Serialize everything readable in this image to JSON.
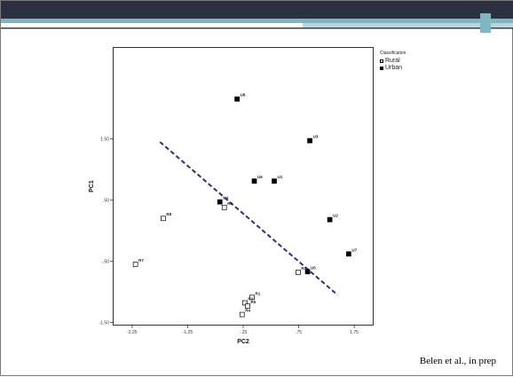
{
  "colors": {
    "header_dark": "#2b3140",
    "header_teal": "#7fb6c4",
    "header_light": "#b9d6de",
    "divider_line": "#3b3f4a",
    "rural_fill": "#ffffff",
    "urban_fill": "#000000",
    "dashed_line": "#2e2e7a"
  },
  "legend": {
    "title": "Classification",
    "items": [
      {
        "label": "Rural",
        "marker": "open-square"
      },
      {
        "label": "Urban",
        "marker": "filled-square"
      }
    ]
  },
  "citation": "Belen et al., in prep",
  "chart_data": {
    "type": "scatter",
    "xlabel": "PC2",
    "ylabel": "PC1",
    "xlim": [
      -2.6,
      2.1
    ],
    "ylim": [
      -1.55,
      3.0
    ],
    "xticks": [
      -2.25,
      -1.25,
      -0.25,
      0.75,
      1.75
    ],
    "xtick_labels": [
      "-2.25",
      "-1.25",
      "-.25",
      ".75",
      "1.75"
    ],
    "yticks": [
      1.5,
      0.5,
      -0.5,
      -1.5
    ],
    "ytick_labels": [
      "1.50",
      ".50",
      "-.50",
      "-1.50"
    ],
    "grid": false,
    "legend_position": "right",
    "series": [
      {
        "name": "Rural",
        "marker": "open-square",
        "points": [
          {
            "label": "R1",
            "x": -0.09,
            "y": -1.09
          },
          {
            "label": "R2",
            "x": 0.74,
            "y": -0.68
          },
          {
            "label": "R3",
            "x": -0.22,
            "y": -1.18
          },
          {
            "label": "R4",
            "x": -0.27,
            "y": -1.37
          },
          {
            "label": "R5",
            "x": -0.17,
            "y": -1.23
          },
          {
            "label": "R6",
            "x": -0.59,
            "y": 0.38
          },
          {
            "label": "R7",
            "x": -2.19,
            "y": -0.55
          },
          {
            "label": "R8",
            "x": -1.69,
            "y": 0.2
          }
        ]
      },
      {
        "name": "Urban",
        "marker": "filled-square",
        "points": [
          {
            "label": "U1",
            "x": 0.31,
            "y": 0.81
          },
          {
            "label": "U2",
            "x": 1.31,
            "y": 0.18
          },
          {
            "label": "U3",
            "x": 0.95,
            "y": 1.47
          },
          {
            "label": "U4",
            "x": -0.67,
            "y": 0.47
          },
          {
            "label": "U5",
            "x": 0.91,
            "y": -0.67
          },
          {
            "label": "U6",
            "x": -0.05,
            "y": 0.81
          },
          {
            "label": "U7",
            "x": 1.65,
            "y": -0.38
          },
          {
            "label": "U8",
            "x": -0.36,
            "y": 2.15
          }
        ]
      }
    ],
    "reference_line": {
      "style": "dashed",
      "points": [
        [
          -1.75,
          1.45
        ],
        [
          1.45,
          -1.05
        ]
      ]
    }
  }
}
